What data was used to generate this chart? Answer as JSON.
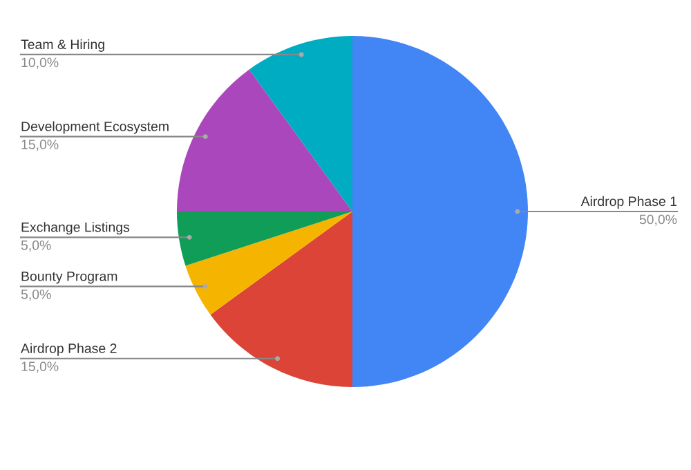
{
  "chart_data": {
    "type": "pie",
    "categories": [
      "Airdrop Phase 1",
      "Airdrop Phase 2",
      "Bounty Program",
      "Exchange Listings",
      "Development Ecosystem",
      "Team & Hiring"
    ],
    "values": [
      50,
      15,
      5,
      5,
      15,
      10
    ],
    "colors": [
      "#4285f4",
      "#db4437",
      "#f4b400",
      "#0f9d58",
      "#ab47bc",
      "#00acc1"
    ],
    "value_labels": [
      "50,0%",
      "15,0%",
      "5,0%",
      "5,0%",
      "15,0%",
      "10,0%"
    ],
    "legend": false
  }
}
